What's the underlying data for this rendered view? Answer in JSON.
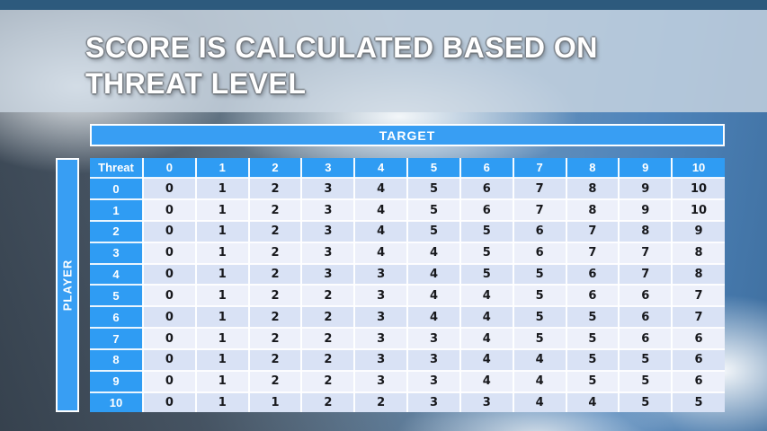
{
  "slide": {
    "title_line1": "SCORE IS CALCULATED BASED ON",
    "title_line2": "THREAT LEVEL"
  },
  "matrix": {
    "target_axis_label": "TARGET",
    "player_axis_label": "PLAYER",
    "corner_label": "Threat",
    "column_headers": [
      "0",
      "1",
      "2",
      "3",
      "4",
      "5",
      "6",
      "7",
      "8",
      "9",
      "10"
    ],
    "rows": [
      {
        "threat": "0",
        "values": [
          0,
          1,
          2,
          3,
          4,
          5,
          6,
          7,
          8,
          9,
          10
        ]
      },
      {
        "threat": "1",
        "values": [
          0,
          1,
          2,
          3,
          4,
          5,
          6,
          7,
          8,
          9,
          10
        ]
      },
      {
        "threat": "2",
        "values": [
          0,
          1,
          2,
          3,
          4,
          5,
          5,
          6,
          7,
          8,
          9
        ]
      },
      {
        "threat": "3",
        "values": [
          0,
          1,
          2,
          3,
          4,
          4,
          5,
          6,
          7,
          7,
          8
        ]
      },
      {
        "threat": "4",
        "values": [
          0,
          1,
          2,
          3,
          3,
          4,
          5,
          5,
          6,
          7,
          8
        ]
      },
      {
        "threat": "5",
        "values": [
          0,
          1,
          2,
          2,
          3,
          4,
          4,
          5,
          6,
          6,
          7
        ]
      },
      {
        "threat": "6",
        "values": [
          0,
          1,
          2,
          2,
          3,
          4,
          4,
          5,
          5,
          6,
          7
        ]
      },
      {
        "threat": "7",
        "values": [
          0,
          1,
          2,
          2,
          3,
          3,
          4,
          5,
          5,
          6,
          6
        ]
      },
      {
        "threat": "8",
        "values": [
          0,
          1,
          2,
          2,
          3,
          3,
          4,
          4,
          5,
          5,
          6
        ]
      },
      {
        "threat": "9",
        "values": [
          0,
          1,
          2,
          2,
          3,
          3,
          4,
          4,
          5,
          5,
          6
        ]
      },
      {
        "threat": "10",
        "values": [
          0,
          1,
          1,
          2,
          2,
          3,
          3,
          4,
          4,
          5,
          5
        ]
      }
    ]
  },
  "colors": {
    "accent_blue": "#389ef3",
    "band_dark": "#d9e2f5",
    "band_light": "#edf0fa",
    "top_strip_blue": "#2d5a7d",
    "title_text": "#ffffff",
    "value_text": "#17181c"
  }
}
